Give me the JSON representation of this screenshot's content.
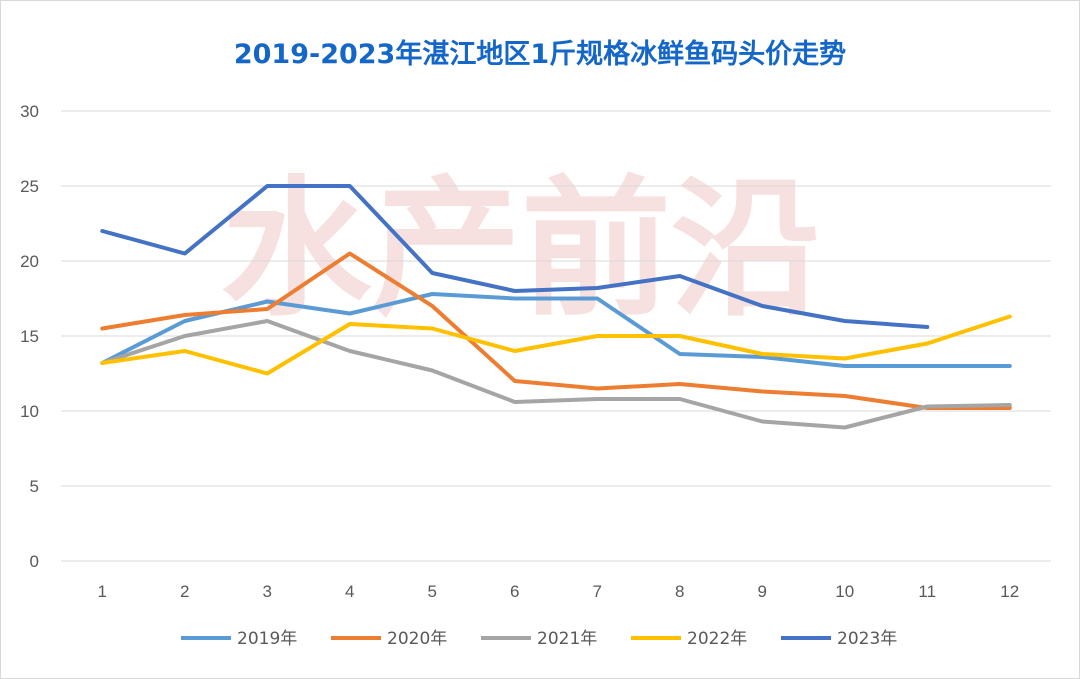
{
  "chart_data": {
    "type": "line",
    "title": "2019-2023年湛江地区1斤规格冰鲜鱼码头价走势",
    "watermark": "水产前沿",
    "x": [
      "1",
      "2",
      "3",
      "4",
      "5",
      "6",
      "7",
      "8",
      "9",
      "10",
      "11",
      "12"
    ],
    "ylim": [
      0,
      30
    ],
    "yticks": [
      0,
      5,
      10,
      15,
      20,
      25,
      30
    ],
    "grid": true,
    "legend_position": "bottom",
    "series": [
      {
        "name": "2019年",
        "color": "#5b9bd5",
        "values": [
          13.2,
          16.0,
          17.3,
          16.5,
          17.8,
          17.5,
          17.5,
          13.8,
          13.6,
          13.0,
          13.0,
          13.0
        ]
      },
      {
        "name": "2020年",
        "color": "#ed7d31",
        "values": [
          15.5,
          16.4,
          16.8,
          20.5,
          17.0,
          12.0,
          11.5,
          11.8,
          11.3,
          11.0,
          10.2,
          10.2
        ]
      },
      {
        "name": "2021年",
        "color": "#a5a5a5",
        "values": [
          13.2,
          15.0,
          16.0,
          14.0,
          12.7,
          10.6,
          10.8,
          10.8,
          9.3,
          8.9,
          10.3,
          10.4
        ]
      },
      {
        "name": "2022年",
        "color": "#ffc000",
        "values": [
          13.2,
          14.0,
          12.5,
          15.8,
          15.5,
          14.0,
          15.0,
          15.0,
          13.8,
          13.5,
          14.5,
          16.3
        ]
      },
      {
        "name": "2023年",
        "color": "#4472c4",
        "values": [
          22.0,
          20.5,
          25.0,
          25.0,
          19.2,
          18.0,
          18.2,
          19.0,
          17.0,
          16.0,
          15.6,
          null
        ]
      }
    ]
  }
}
